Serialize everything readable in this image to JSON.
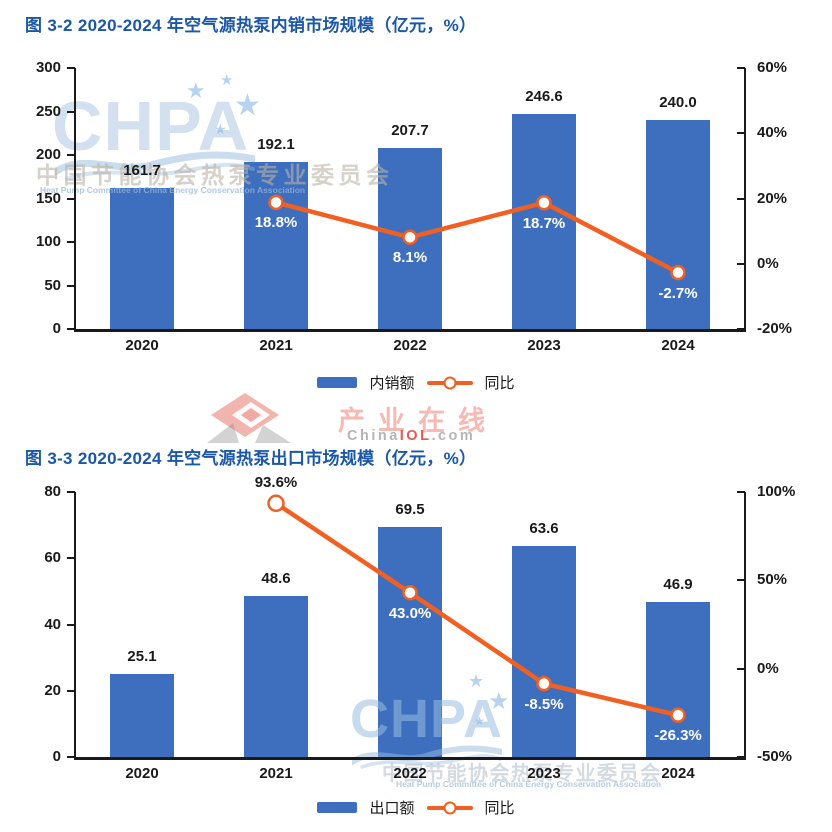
{
  "colors": {
    "bar_blue": "#3E6FBE",
    "line_orange": "#F16022",
    "title_blue": "#1B57A8",
    "axis_text": "#1A1A1A"
  },
  "chart_data": [
    {
      "type": "bar",
      "title": "图 3-2 2020-2024 年空气源热泵内销市场规模（亿元，%）",
      "categories": [
        "2020",
        "2021",
        "2022",
        "2023",
        "2024"
      ],
      "series": [
        {
          "name": "内销额",
          "type": "bar",
          "axis": "left",
          "values": [
            161.7,
            192.1,
            207.7,
            246.6,
            240.0
          ],
          "labels": [
            "161.7",
            "192.1",
            "207.7",
            "246.6",
            "240.0"
          ]
        },
        {
          "name": "同比",
          "type": "line",
          "axis": "right",
          "values": [
            null,
            18.8,
            8.1,
            18.7,
            -2.7
          ],
          "labels": [
            null,
            "18.8%",
            "8.1%",
            "18.7%",
            "-2.7%"
          ],
          "label_positions": [
            null,
            "below",
            "below",
            "below",
            "below"
          ]
        }
      ],
      "left_axis": {
        "min": 0,
        "max": 300,
        "step": 50,
        "tick_labels": [
          "300",
          "250",
          "200",
          "150",
          "100",
          "50",
          "0"
        ]
      },
      "right_axis": {
        "min": -20,
        "max": 60,
        "step": 20,
        "tick_labels": [
          "60%",
          "40%",
          "20%",
          "0%",
          "-20%"
        ]
      },
      "legend": [
        {
          "label": "内销额",
          "type": "bar"
        },
        {
          "label": "同比",
          "type": "line"
        }
      ],
      "grid": false,
      "legend_position": "bottom-center"
    },
    {
      "type": "bar",
      "title": "图 3-3 2020-2024 年空气源热泵出口市场规模（亿元，%）",
      "categories": [
        "2020",
        "2021",
        "2022",
        "2023",
        "2024"
      ],
      "series": [
        {
          "name": "出口额",
          "type": "bar",
          "axis": "left",
          "values": [
            25.1,
            48.6,
            69.5,
            63.6,
            46.9
          ],
          "labels": [
            "25.1",
            "48.6",
            "69.5",
            "63.6",
            "46.9"
          ]
        },
        {
          "name": "同比",
          "type": "line",
          "axis": "right",
          "values": [
            null,
            93.6,
            43.0,
            -8.5,
            -26.3
          ],
          "labels": [
            null,
            "93.6%",
            "43.0%",
            "-8.5%",
            "-26.3%"
          ],
          "label_positions": [
            null,
            "above",
            "below",
            "below",
            "below"
          ]
        }
      ],
      "left_axis": {
        "min": 0,
        "max": 80,
        "step": 20,
        "tick_labels": [
          "80",
          "60",
          "40",
          "20",
          "0"
        ]
      },
      "right_axis": {
        "min": -50,
        "max": 100,
        "step": 50,
        "tick_labels": [
          "100%",
          "50%",
          "0%",
          "-50%"
        ]
      },
      "legend": [
        {
          "label": "出口额",
          "type": "bar"
        },
        {
          "label": "同比",
          "type": "line"
        }
      ],
      "grid": false,
      "legend_position": "bottom-center"
    }
  ],
  "watermarks": {
    "chpa_top": {
      "logo": "CHPA",
      "cn": "中国节能协会热泵专业委员会",
      "en": "Heat Pump Committee of China Energy Conservation Association"
    },
    "chpa_bottom": {
      "logo": "CHPA",
      "cn": "中国节能协会热泵专业委员会",
      "en": "Heat Pump Committee of China Energy Conservation Association"
    },
    "chinaiol": {
      "cn": "产业在线",
      "site_prefix": "China",
      "site_mid": "IOL",
      "site_suffix": ".com"
    }
  }
}
